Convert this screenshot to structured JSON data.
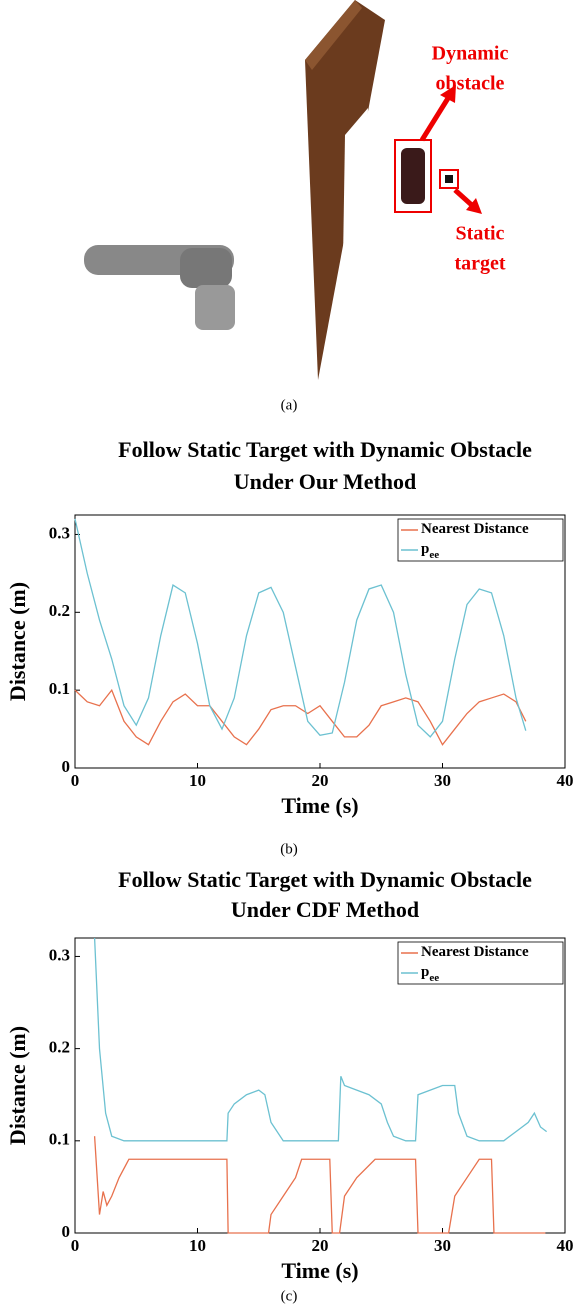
{
  "scene": {
    "labels": [
      "Dynamic",
      "obstacle",
      "Static",
      "target"
    ],
    "caption": "(a)"
  },
  "chart_data": [
    {
      "type": "line",
      "title": [
        "Follow Static Target with Dynamic Obstacle",
        "Under Our Method"
      ],
      "xlabel": "Time (s)",
      "ylabel": "Distance (m)",
      "caption": "(b)",
      "xlim": [
        0,
        40
      ],
      "ylim": [
        0,
        0.325
      ],
      "xticks": [
        0,
        10,
        20,
        30,
        40
      ],
      "yticks": [
        0,
        0.1,
        0.2,
        0.3
      ],
      "series": [
        {
          "name": "Nearest Distance",
          "color": "#e8714d",
          "x": [
            0,
            1,
            2,
            3,
            4,
            5,
            6,
            7,
            8,
            9,
            10,
            11,
            12,
            13,
            14,
            15,
            16,
            17,
            18,
            19,
            20,
            21,
            22,
            23,
            24,
            25,
            26,
            27,
            28,
            29,
            30,
            31,
            32,
            33,
            34,
            35,
            36,
            36.8
          ],
          "values": [
            0.1,
            0.085,
            0.08,
            0.1,
            0.06,
            0.04,
            0.03,
            0.06,
            0.085,
            0.095,
            0.08,
            0.08,
            0.06,
            0.04,
            0.03,
            0.05,
            0.075,
            0.08,
            0.08,
            0.07,
            0.08,
            0.06,
            0.04,
            0.04,
            0.055,
            0.08,
            0.085,
            0.09,
            0.085,
            0.06,
            0.03,
            0.05,
            0.07,
            0.085,
            0.09,
            0.095,
            0.085,
            0.06
          ]
        },
        {
          "name": "p",
          "name_sub": "ee",
          "color": "#6cc1d1",
          "x": [
            0,
            1,
            2,
            3,
            4,
            5,
            6,
            7,
            8,
            9,
            10,
            11,
            12,
            13,
            14,
            15,
            16,
            17,
            18,
            19,
            20,
            21,
            22,
            23,
            24,
            25,
            26,
            27,
            28,
            29,
            30,
            31,
            32,
            33,
            34,
            35,
            36,
            36.8
          ],
          "values": [
            0.32,
            0.25,
            0.19,
            0.14,
            0.08,
            0.055,
            0.09,
            0.17,
            0.235,
            0.225,
            0.16,
            0.08,
            0.05,
            0.09,
            0.17,
            0.225,
            0.232,
            0.2,
            0.13,
            0.06,
            0.042,
            0.045,
            0.11,
            0.19,
            0.23,
            0.235,
            0.2,
            0.12,
            0.055,
            0.04,
            0.06,
            0.14,
            0.21,
            0.23,
            0.225,
            0.17,
            0.09,
            0.048
          ]
        }
      ]
    },
    {
      "type": "line",
      "title": [
        "Follow Static Target with Dynamic Obstacle",
        "Under CDF Method"
      ],
      "xlabel": "Time (s)",
      "ylabel": "Distance (m)",
      "caption": "(c)",
      "xlim": [
        0,
        40
      ],
      "ylim": [
        0,
        0.32
      ],
      "xticks": [
        0,
        10,
        20,
        30,
        40
      ],
      "yticks": [
        0,
        0.1,
        0.2,
        0.3
      ],
      "series": [
        {
          "name": "Nearest Distance",
          "color": "#e8714d",
          "x": [
            1.6,
            2,
            2.3,
            2.6,
            3,
            3.6,
            4.4,
            12.4,
            12.5,
            15.8,
            16,
            17,
            18,
            18.5,
            20.8,
            21,
            21.6,
            22,
            23,
            24.5,
            27.8,
            28,
            30.5,
            31,
            32,
            33,
            34,
            34.2,
            38.4
          ],
          "values": [
            0.105,
            0.02,
            0.045,
            0.03,
            0.04,
            0.06,
            0.08,
            0.08,
            0,
            0,
            0.02,
            0.04,
            0.06,
            0.08,
            0.08,
            0,
            0,
            0.04,
            0.06,
            0.08,
            0.08,
            0,
            0,
            0.04,
            0.06,
            0.08,
            0.08,
            0,
            0
          ]
        },
        {
          "name": "p",
          "name_sub": "ee",
          "color": "#6cc1d1",
          "x": [
            1.6,
            2,
            2.5,
            3,
            4,
            12.4,
            12.5,
            13,
            14,
            15,
            15.5,
            16,
            17,
            21.5,
            21.7,
            22,
            23,
            24,
            25,
            25.5,
            26,
            27,
            27.8,
            28,
            29,
            30,
            31,
            31.3,
            32,
            33,
            35,
            36,
            37,
            37.5,
            38,
            38.5
          ],
          "values": [
            0.32,
            0.2,
            0.13,
            0.105,
            0.1,
            0.1,
            0.13,
            0.14,
            0.15,
            0.155,
            0.15,
            0.12,
            0.1,
            0.1,
            0.17,
            0.16,
            0.155,
            0.15,
            0.14,
            0.12,
            0.105,
            0.1,
            0.1,
            0.15,
            0.155,
            0.16,
            0.16,
            0.13,
            0.105,
            0.1,
            0.1,
            0.11,
            0.12,
            0.13,
            0.115,
            0.11
          ]
        }
      ]
    }
  ]
}
